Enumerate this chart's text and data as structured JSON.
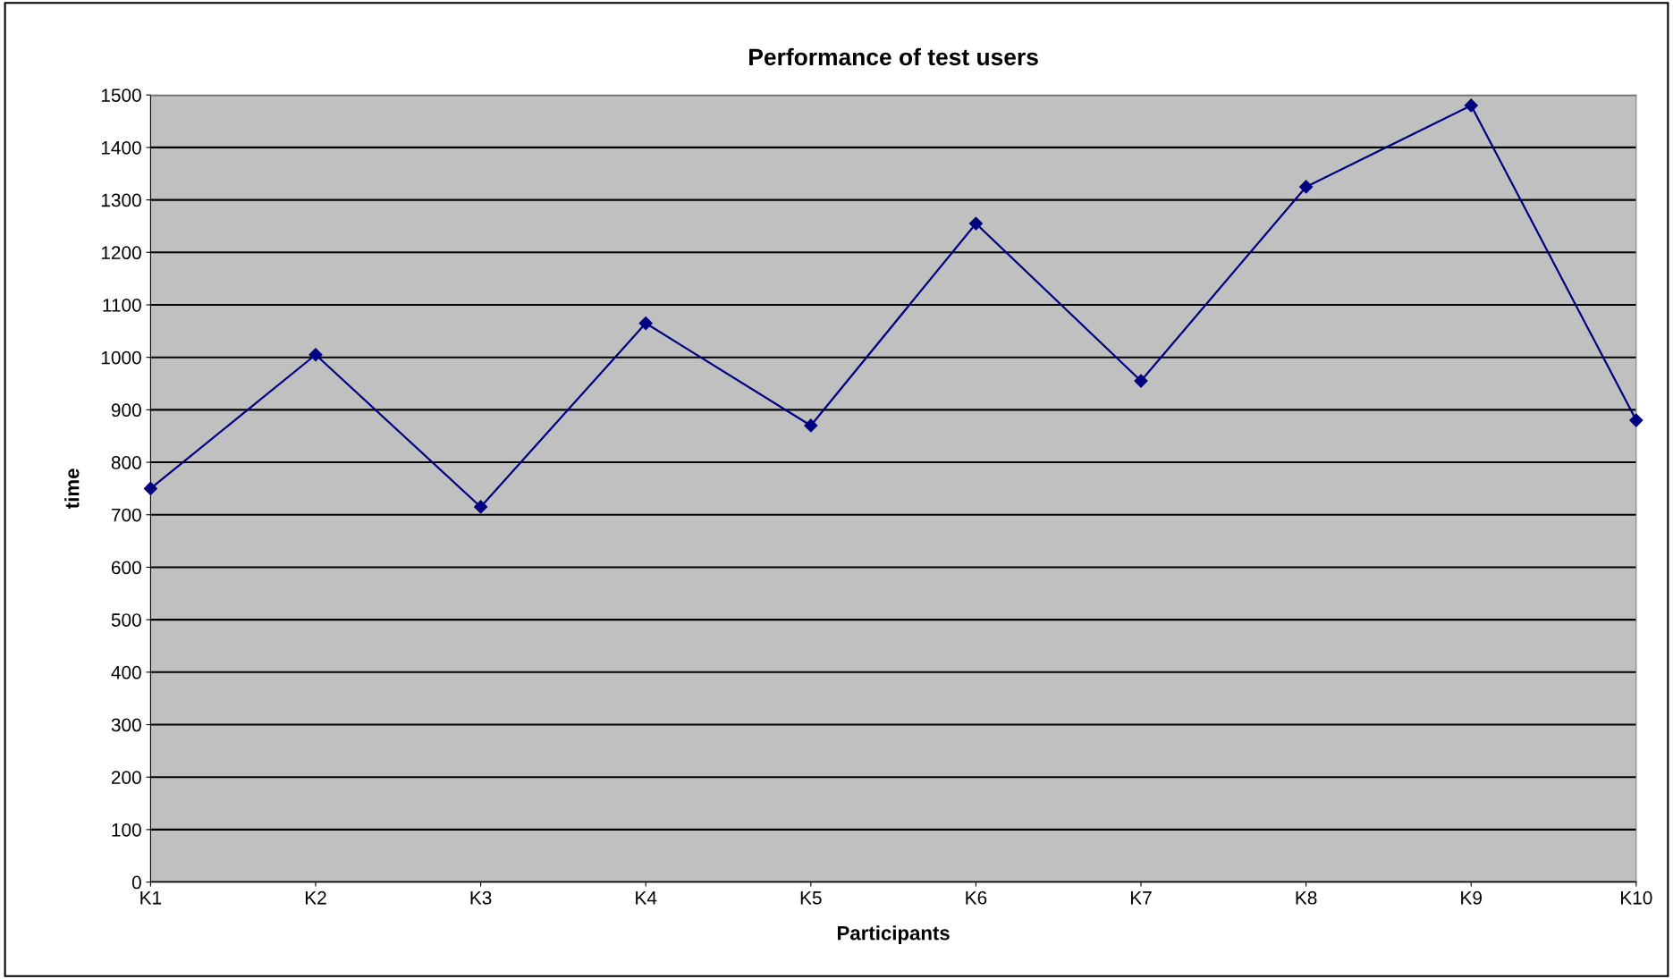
{
  "chart_data": {
    "type": "line",
    "title": "Performance of test users",
    "xlabel": "Participants",
    "ylabel": "time",
    "categories": [
      "K1",
      "K2",
      "K3",
      "K4",
      "K5",
      "K6",
      "K7",
      "K8",
      "K9",
      "K10"
    ],
    "series": [
      {
        "color": "#000080",
        "values": [
          750,
          1005,
          715,
          1065,
          870,
          1255,
          955,
          1325,
          1480,
          880
        ]
      }
    ],
    "ylim": [
      0,
      1500
    ],
    "yticks": [
      0,
      100,
      200,
      300,
      400,
      500,
      600,
      700,
      800,
      900,
      1000,
      1100,
      1200,
      1300,
      1400,
      1500
    ],
    "grid": "y",
    "marker": "diamond",
    "line_style": "solid"
  }
}
